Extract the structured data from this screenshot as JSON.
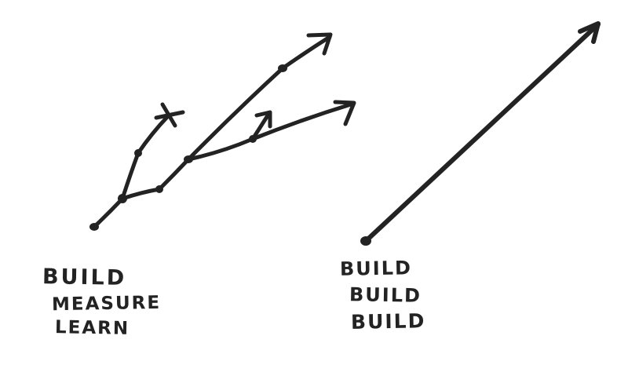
{
  "diagram": {
    "left": {
      "lines": [
        "BUILD",
        "MEASURE",
        "LEARN"
      ]
    },
    "right": {
      "lines": [
        "BUILD",
        "BUILD",
        "BUILD"
      ]
    },
    "colors": {
      "ink": "#232323",
      "background": "#ffffff"
    }
  }
}
